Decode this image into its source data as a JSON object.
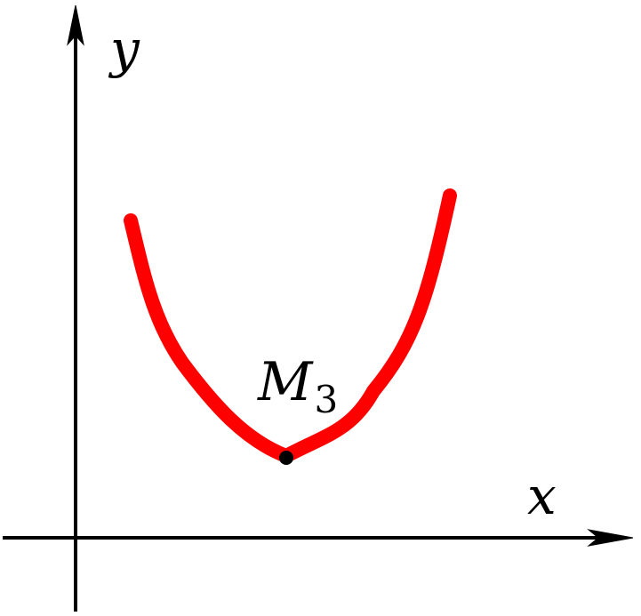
{
  "axes": {
    "x_label": "x",
    "y_label": "y"
  },
  "point": {
    "name": "M",
    "subscript": "3"
  },
  "colors": {
    "curve": "#ff0000",
    "axes": "#000000",
    "background": "#ffffff"
  }
}
